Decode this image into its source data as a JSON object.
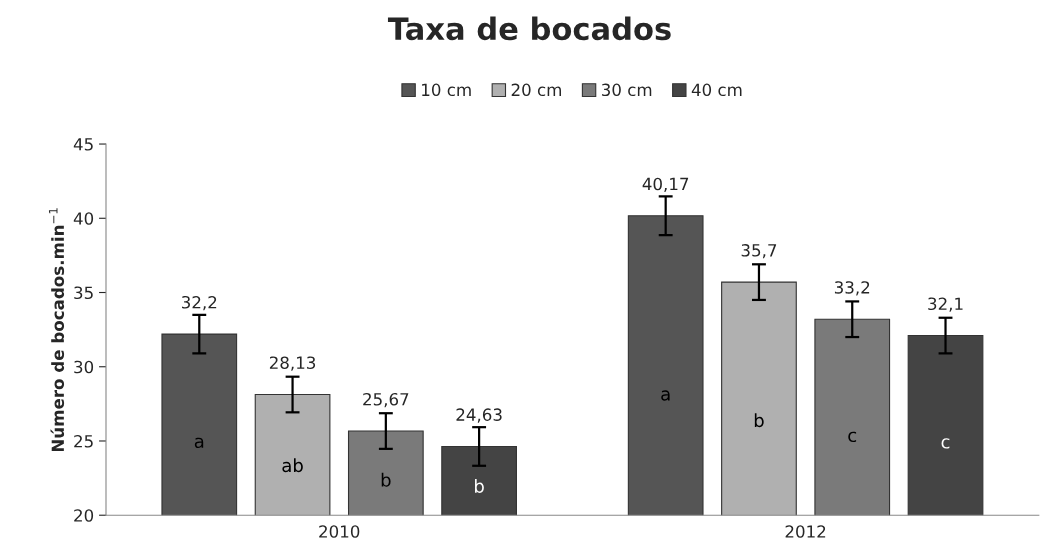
{
  "chart_data": {
    "type": "bar",
    "title": "Taxa de bocados",
    "ylabel": "Número de bocados.min$^{−1}$",
    "categories": [
      "2010",
      "2012"
    ],
    "series": [
      {
        "name": "10 cm",
        "color": "#555555",
        "values": [
          32.2,
          40.17
        ],
        "errors": [
          1.3,
          1.3
        ],
        "value_labels": [
          "32,2",
          "40,17"
        ]
      },
      {
        "name": "20 cm",
        "color": "#b0b0b0",
        "values": [
          28.13,
          35.7
        ],
        "errors": [
          1.2,
          1.2
        ],
        "value_labels": [
          "28,13",
          "35,7"
        ]
      },
      {
        "name": "30 cm",
        "color": "#7a7a7a",
        "values": [
          25.67,
          33.2
        ],
        "errors": [
          1.2,
          1.2
        ],
        "value_labels": [
          "25,67",
          "33,2"
        ]
      },
      {
        "name": "40 cm",
        "color": "#444444",
        "values": [
          24.63,
          32.1
        ],
        "errors": [
          1.3,
          1.2
        ],
        "value_labels": [
          "24,63",
          "32,1"
        ]
      }
    ],
    "annotations": [
      "a",
      "ab",
      "b",
      "b",
      "a",
      "b",
      "c",
      "c"
    ],
    "ylim": [
      20,
      45
    ],
    "yticks": [
      20,
      25,
      30,
      35,
      40,
      45
    ],
    "grid": false,
    "legend": "top"
  }
}
